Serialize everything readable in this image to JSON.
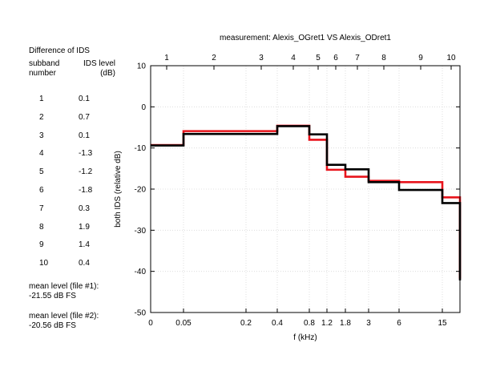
{
  "side_panel": {
    "title": "Difference of IDS",
    "col_subband": "subband\nnumber",
    "col_level": "IDS level\n(dB)",
    "rows": [
      {
        "n": "1",
        "v": "0.1"
      },
      {
        "n": "2",
        "v": "0.7"
      },
      {
        "n": "3",
        "v": "0.1"
      },
      {
        "n": "4",
        "v": "-1.3"
      },
      {
        "n": "5",
        "v": "-1.2"
      },
      {
        "n": "6",
        "v": "-1.8"
      },
      {
        "n": "7",
        "v": "0.3"
      },
      {
        "n": "8",
        "v": "1.9"
      },
      {
        "n": "9",
        "v": "1.4"
      },
      {
        "n": "10",
        "v": "0.4"
      }
    ],
    "mean1_label": "mean level (file #1):",
    "mean1_value": "-21.55 dB FS",
    "mean2_label": "mean level (file #2):",
    "mean2_value": "-20.56 dB FS"
  },
  "chart_data": {
    "type": "line",
    "step": true,
    "title": "measurement: Alexis_OGret1 VS Alexis_ODret1",
    "xlabel": "f (kHz)",
    "ylabel": "both IDS (relative dB)",
    "ylim": [
      -50,
      10
    ],
    "yticks": [
      -50,
      -40,
      -30,
      -20,
      -10,
      0,
      10
    ],
    "xticks_bottom": [
      "0",
      "0.05",
      "0.2",
      "0.4",
      "0.8",
      "1.2",
      "1.8",
      "3",
      "6",
      "15"
    ],
    "xticks_top": [
      "1",
      "2",
      "3",
      "4",
      "5",
      "6",
      "7",
      "8",
      "9",
      "10"
    ],
    "grid": true,
    "series": [
      {
        "color": "#e8141c",
        "values": [
          -9.3,
          -5.9,
          -5.9,
          -4.6,
          -8.0,
          -15.3,
          -17.0,
          -18.0,
          -18.3,
          -22.0,
          -41.8
        ]
      },
      {
        "color": "#000000",
        "values": [
          -9.4,
          -6.6,
          -6.6,
          -4.7,
          -6.7,
          -14.1,
          -15.2,
          -18.3,
          -20.2,
          -23.4,
          -42.2
        ]
      }
    ]
  }
}
